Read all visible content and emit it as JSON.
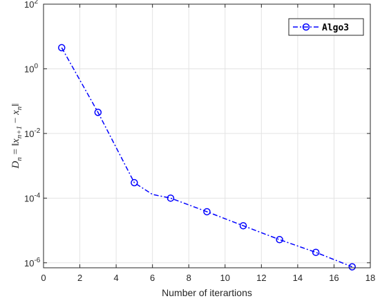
{
  "chart_data": {
    "type": "line",
    "title": "",
    "xlabel": "Number of iterartions",
    "ylabel": "D_n = ||x_{n+1} − x_n||",
    "ylabel_parts": {
      "lhs": "D",
      "lhs_sub": "n",
      "eq": " = ‖",
      "x1": "x",
      "x1_sub": "n+1",
      "minus": " − ",
      "x2": "x",
      "x2_sub": "n",
      "close": "‖"
    },
    "xlim": [
      0,
      18
    ],
    "ylim": [
      7e-07,
      100
    ],
    "yscale": "log",
    "xticks": [
      0,
      2,
      4,
      6,
      8,
      10,
      12,
      14,
      16,
      18
    ],
    "yticks": [
      {
        "value": 1e-06,
        "base": "10",
        "exp": "-6"
      },
      {
        "value": 0.0001,
        "base": "10",
        "exp": "-4"
      },
      {
        "value": 0.01,
        "base": "10",
        "exp": "-2"
      },
      {
        "value": 1,
        "base": "10",
        "exp": "0"
      },
      {
        "value": 100,
        "base": "10",
        "exp": "2"
      }
    ],
    "grid": true,
    "legend_position": "top-right",
    "series": [
      {
        "name": "Algo3",
        "color": "#0000ff",
        "line_style": "dash-dot",
        "marker": "circle",
        "x": [
          1,
          3,
          5,
          6,
          7,
          9,
          11,
          13,
          15,
          17
        ],
        "y": [
          4.5,
          0.045,
          0.0003,
          0.00013,
          0.0001,
          3.8e-05,
          1.4e-05,
          5.2e-06,
          2.1e-06,
          7.5e-07
        ],
        "marker_x": [
          1,
          3,
          5,
          7,
          9,
          11,
          13,
          15,
          17
        ]
      }
    ]
  }
}
